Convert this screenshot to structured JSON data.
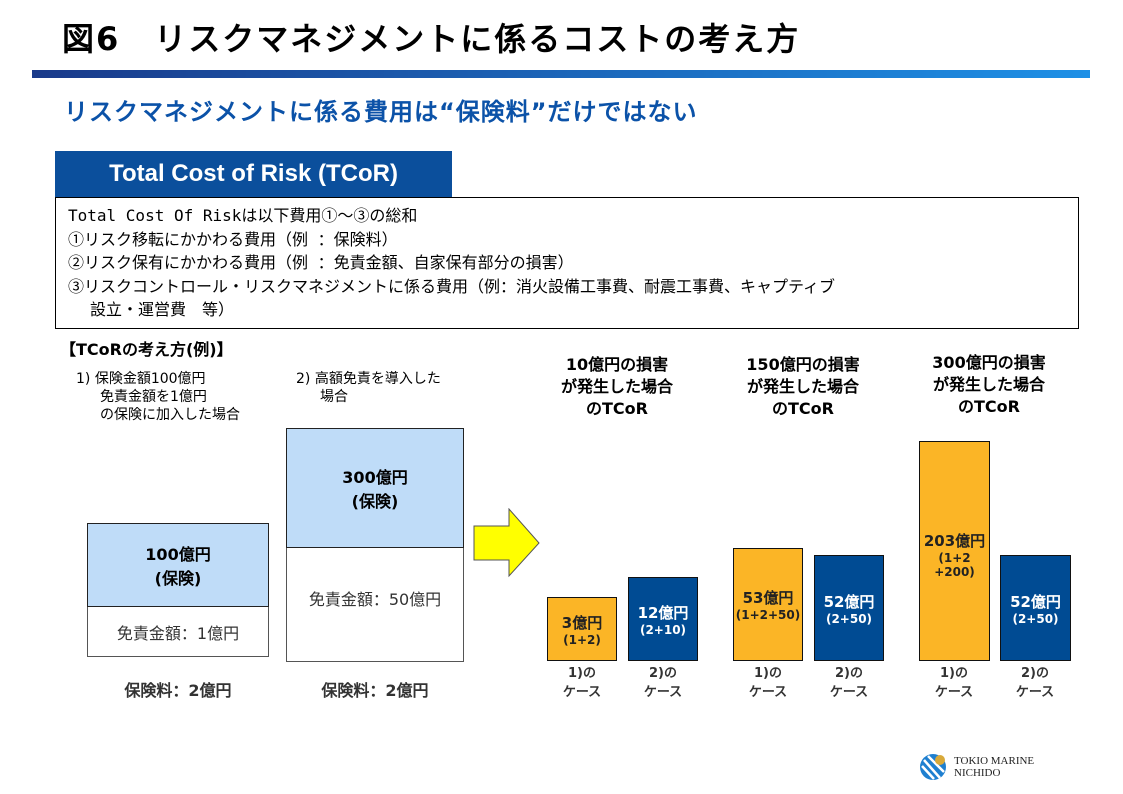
{
  "title": "図6　リスクマネジメントに係るコストの考え方",
  "subtitle": "リスクマネジメントに係る費用は“保険料”だけではない",
  "tcor_heading": "Total Cost of Risk (TCoR)",
  "definition": [
    "Total Cost Of Riskは以下費用①～③の総和",
    "①リスク移転にかかわる費用（例 ：保険料）",
    "②リスク保有にかかわる費用（例 ：免責金額、自家保有部分の損害）",
    "③リスクコントロール・リスクマネジメントに係る費用（例：消火設備工事費、耐震工事費、キャプティブ",
    "設立・運営費　等）"
  ],
  "example_heading": "【TCoRの考え方(例)】",
  "case1": {
    "desc": [
      "1) 保険金額100億円",
      "免責金額を1億円",
      "の保険に加入した場合"
    ],
    "insured": "100億円",
    "insured_sub": "(保険)",
    "deductible": "免責金額：1億円",
    "premium": "保険料：2億円"
  },
  "case2": {
    "desc": [
      "2) 高額免責を導入した",
      "場合"
    ],
    "insured": "300億円",
    "insured_sub": "(保険)",
    "deductible": "免責金額：50億円",
    "premium": "保険料：2億円"
  },
  "colors": {
    "case1": "#fbb526",
    "case2": "#004b93",
    "insurance": "#bfdcf8",
    "header": "#0b4f9c"
  },
  "scenarios": [
    {
      "caption": [
        "10億円の損害",
        "が発生した場合",
        "のTCoR"
      ],
      "bars": [
        {
          "value": "3億円",
          "formula": [
            "(1+2)"
          ],
          "amount": 3,
          "case": "1)の|ケース"
        },
        {
          "value": "12億円",
          "formula": [
            "(2+10)"
          ],
          "amount": 12,
          "case": "2)の|ケース"
        }
      ]
    },
    {
      "caption": [
        "150億円の損害",
        "が発生した場合",
        "のTCoR"
      ],
      "bars": [
        {
          "value": "53億円",
          "formula": [
            "(1+2+50)"
          ],
          "amount": 53,
          "case": "1)の|ケース"
        },
        {
          "value": "52億円",
          "formula": [
            "(2+50)"
          ],
          "amount": 52,
          "case": "2)の|ケース"
        }
      ]
    },
    {
      "caption": [
        "300億円の損害",
        "が発生した場合",
        "のTCoR"
      ],
      "bars": [
        {
          "value": "203億円",
          "formula": [
            "(1+2",
            "+200)"
          ],
          "amount": 203,
          "case": "1)の|ケース"
        },
        {
          "value": "52億円",
          "formula": [
            "(2+50)"
          ],
          "amount": 52,
          "case": "2)の|ケース"
        }
      ]
    }
  ],
  "logo": {
    "line1": "TOKIO MARINE",
    "line2": "NICHIDO"
  }
}
